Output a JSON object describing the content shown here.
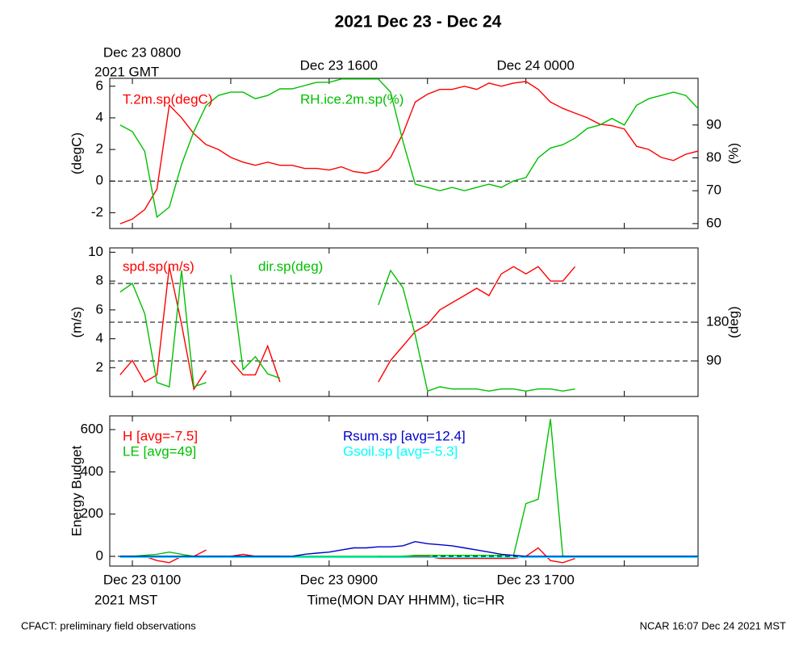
{
  "title": "2021 Dec 23 - Dec 24",
  "top_time_note": "2021 GMT",
  "bottom_time_note": "2021 MST",
  "x_label": "Time(MON DAY HHMM), tic=HR",
  "footer_left": "CFACT: preliminary field observations",
  "footer_right": "NCAR 16:07 Dec 24 2021 MST",
  "chart_data": [
    {
      "type": "line",
      "ylabel": "(degC)",
      "y2label": "(%)",
      "ylim": [
        -3.0,
        6.5
      ],
      "yticks": [
        -2,
        0,
        2,
        4,
        6
      ],
      "ref_lines": [
        0
      ],
      "y2lim": [
        58.5,
        104.2
      ],
      "y2ticks": [
        60,
        70,
        80,
        90
      ],
      "xlim": [
        0.08,
        24
      ],
      "xtick_marks": [
        1,
        5,
        9,
        13,
        17,
        21
      ],
      "xticks_top": [
        {
          "value": 1,
          "label": "Dec 23 0800"
        },
        {
          "value": 9,
          "label": "Dec 23 1600"
        },
        {
          "value": 17,
          "label": "Dec 24 0000"
        }
      ],
      "x": [
        0.5,
        1,
        1.5,
        2,
        2.5,
        3,
        3.5,
        4,
        4.5,
        5,
        5.5,
        6,
        6.5,
        7,
        7.5,
        8,
        8.5,
        9,
        9.5,
        10,
        10.5,
        11,
        11.5,
        12,
        12.5,
        13,
        13.5,
        14,
        14.5,
        15,
        15.5,
        16,
        16.5,
        17,
        17.5,
        18,
        18.5,
        19,
        19.5,
        20,
        20.5,
        21,
        21.5,
        22,
        22.5,
        23,
        23.5,
        24
      ],
      "series": [
        {
          "name": "T.2m.sp(degC)",
          "color": "#ff0000",
          "values": [
            -2.7,
            -2.4,
            -1.8,
            -0.5,
            4.8,
            4,
            3,
            2.3,
            2,
            1.5,
            1.2,
            1.0,
            1.2,
            1.0,
            1.0,
            0.8,
            0.8,
            0.7,
            0.9,
            0.6,
            0.5,
            0.7,
            1.5,
            3,
            5,
            5.5,
            5.8,
            5.8,
            6.0,
            5.8,
            6.2,
            6.0,
            6.2,
            6.3,
            5.8,
            5.0,
            4.6,
            4.3,
            4,
            3.6,
            3.5,
            3.3,
            2.2,
            2.0,
            1.5,
            1.3,
            1.7,
            1.9
          ]
        },
        {
          "name": "RH.ice.2m.sp(%)",
          "color": "#00c000",
          "axis": "y2",
          "values": [
            90,
            88,
            82,
            62,
            65,
            78,
            88,
            96,
            99,
            100,
            100,
            98,
            99,
            101,
            101,
            102,
            103,
            103,
            104,
            104,
            104,
            104,
            100,
            85,
            72,
            71,
            70,
            71,
            70,
            71,
            72,
            71,
            73,
            74,
            80,
            83,
            84,
            86,
            89,
            90,
            92,
            90,
            96,
            98,
            99,
            100,
            99,
            95
          ]
        }
      ]
    },
    {
      "type": "line",
      "ylabel": "(m/s)",
      "y2label": "(deg)",
      "ylim": [
        0,
        10.3
      ],
      "yticks": [
        2,
        4,
        6,
        8,
        10
      ],
      "y2lim": [
        7.5,
        352.5
      ],
      "y2ticks": [
        90,
        180
      ],
      "y2_ref_lines": [
        90,
        180,
        270
      ],
      "xlim": [
        0.08,
        24
      ],
      "xtick_marks": [
        1,
        5,
        9,
        13,
        17,
        21
      ],
      "x": [
        0.5,
        1,
        1.5,
        2,
        2.5,
        3,
        3.5,
        4,
        4.5,
        5,
        5.5,
        6,
        6.5,
        7,
        7.5,
        8,
        8.5,
        9,
        9.5,
        10,
        10.5,
        11,
        11.5,
        12,
        12.5,
        13,
        13.5,
        14,
        14.5,
        15,
        15.5,
        16,
        16.5,
        17,
        17.5,
        18,
        18.5,
        19,
        19.5,
        20,
        20.5,
        21,
        21.5,
        22,
        22.5,
        23,
        23.5,
        24
      ],
      "series": [
        {
          "name": "spd.sp(m/s)",
          "color": "#ff0000",
          "values": [
            1.5,
            2.5,
            1.0,
            1.5,
            9,
            5,
            0.5,
            1.8,
            null,
            2.5,
            1.5,
            1.5,
            3.5,
            1.0,
            null,
            null,
            null,
            null,
            null,
            null,
            null,
            1.0,
            2.5,
            3.5,
            4.5,
            5,
            6,
            6.5,
            7,
            7.5,
            7,
            8.5,
            9,
            8.5,
            9,
            8,
            8,
            9,
            null,
            null,
            null,
            null,
            null,
            null,
            null,
            null,
            null,
            null
          ]
        },
        {
          "name": "dir.sp(deg)",
          "color": "#00c000",
          "axis": "y2",
          "values": [
            250,
            270,
            200,
            40,
            30,
            300,
            30,
            40,
            null,
            290,
            70,
            100,
            60,
            50,
            null,
            null,
            null,
            null,
            null,
            null,
            null,
            220,
            300,
            260,
            150,
            20,
            30,
            25,
            25,
            25,
            20,
            25,
            25,
            20,
            25,
            25,
            20,
            25,
            null,
            null,
            null,
            null,
            null,
            null,
            null,
            null,
            null,
            null
          ]
        }
      ]
    },
    {
      "type": "line",
      "ylabel": "Energy Budget",
      "ylim": [
        -46,
        665
      ],
      "yticks": [
        0,
        200,
        400,
        600
      ],
      "ref_lines": [
        0
      ],
      "xlim": [
        0.08,
        24
      ],
      "xtick_marks": [
        1,
        5,
        9,
        13,
        17,
        21
      ],
      "xticks": [
        {
          "value": 1,
          "label": "Dec 23 0100"
        },
        {
          "value": 9,
          "label": "Dec 23 0900"
        },
        {
          "value": 17,
          "label": "Dec 23 1700"
        }
      ],
      "x": [
        0.5,
        1,
        1.5,
        2,
        2.5,
        3,
        3.5,
        4,
        4.5,
        5,
        5.5,
        6,
        6.5,
        7,
        7.5,
        8,
        8.5,
        9,
        9.5,
        10,
        10.5,
        11,
        11.5,
        12,
        12.5,
        13,
        13.5,
        14,
        14.5,
        15,
        15.5,
        16,
        16.5,
        17,
        17.5,
        18,
        18.5,
        19,
        19.5,
        20,
        20.5,
        21,
        21.5,
        22,
        22.5,
        23,
        23.5,
        24
      ],
      "series": [
        {
          "name": "H [avg=-7.5]",
          "color": "#ff0000",
          "values": [
            0,
            0,
            0,
            -20,
            -30,
            0,
            0,
            30,
            null,
            0,
            10,
            0,
            0,
            0,
            null,
            null,
            null,
            null,
            null,
            null,
            null,
            0,
            -5,
            0,
            0,
            0,
            -10,
            -10,
            -10,
            -10,
            -10,
            -10,
            -10,
            0,
            40,
            -20,
            -30,
            -10,
            null,
            null,
            null,
            null,
            null,
            null,
            null,
            null,
            null,
            null
          ]
        },
        {
          "name": "LE [avg=49]",
          "color": "#00c000",
          "values": [
            0,
            0,
            5,
            10,
            20,
            10,
            0,
            0,
            0,
            0,
            0,
            0,
            0,
            0,
            0,
            0,
            0,
            0,
            0,
            0,
            0,
            0,
            0,
            0,
            5,
            5,
            5,
            5,
            5,
            5,
            5,
            5,
            5,
            250,
            270,
            650,
            0,
            0,
            0,
            0,
            0,
            0,
            0,
            0,
            0,
            0,
            0,
            0
          ]
        },
        {
          "name": "Rsum.sp [avg=12.4]",
          "color": "#0000cc",
          "values": [
            0,
            0,
            0,
            0,
            0,
            0,
            0,
            0,
            0,
            0,
            0,
            0,
            0,
            0,
            0,
            10,
            15,
            20,
            30,
            40,
            40,
            45,
            45,
            50,
            70,
            60,
            55,
            50,
            40,
            30,
            20,
            10,
            5,
            0,
            0,
            0,
            0,
            0,
            0,
            0,
            0,
            0,
            0,
            0,
            0,
            0,
            0,
            0
          ]
        },
        {
          "name": "Gsoil.sp [avg=-5.3]",
          "color": "#00ffff",
          "values": [
            -5,
            -5,
            -5,
            -5,
            -5,
            -5,
            -5,
            -5,
            -5,
            -5,
            -5,
            -5,
            -5,
            -5,
            -5,
            -5,
            -5,
            -5,
            -5,
            -5,
            -5,
            -5,
            -5,
            -5,
            -5,
            -5,
            -5,
            -5,
            -5,
            -5,
            -5,
            -5,
            -5,
            -5,
            -5,
            -5,
            -5,
            -5,
            -5,
            -5,
            -5,
            -5,
            -5,
            -5,
            -5,
            -5,
            -5,
            -5
          ]
        }
      ]
    }
  ]
}
